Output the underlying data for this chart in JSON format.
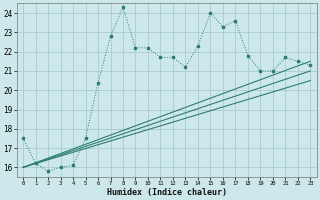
{
  "xlabel": "Humidex (Indice chaleur)",
  "bg_color": "#cce8ea",
  "grid_color": "#aacccc",
  "line_color": "#2e7d6e",
  "line1_x": [
    0,
    1,
    2,
    3,
    4,
    5,
    6,
    7,
    8,
    9,
    10,
    11,
    12,
    13,
    14,
    15,
    16,
    17,
    18,
    19,
    20,
    21,
    22,
    23
  ],
  "line1_y": [
    17.5,
    16.2,
    15.8,
    16.0,
    16.1,
    17.5,
    20.4,
    22.8,
    24.3,
    22.2,
    22.2,
    21.7,
    21.7,
    21.2,
    22.3,
    24.0,
    23.3,
    23.6,
    21.8,
    21.0,
    21.0,
    21.7,
    21.5,
    21.3
  ],
  "line2_x": [
    0,
    23
  ],
  "line2_y": [
    16.0,
    21.5
  ],
  "line3_x": [
    0,
    23
  ],
  "line3_y": [
    16.0,
    21.0
  ],
  "line4_x": [
    0,
    23
  ],
  "line4_y": [
    16.0,
    20.5
  ],
  "xlim": [
    -0.5,
    23.5
  ],
  "ylim": [
    15.5,
    24.5
  ],
  "yticks": [
    16,
    17,
    18,
    19,
    20,
    21,
    22,
    23,
    24
  ],
  "xticks": [
    0,
    1,
    2,
    3,
    4,
    5,
    6,
    7,
    8,
    9,
    10,
    11,
    12,
    13,
    14,
    15,
    16,
    17,
    18,
    19,
    20,
    21,
    22,
    23
  ]
}
